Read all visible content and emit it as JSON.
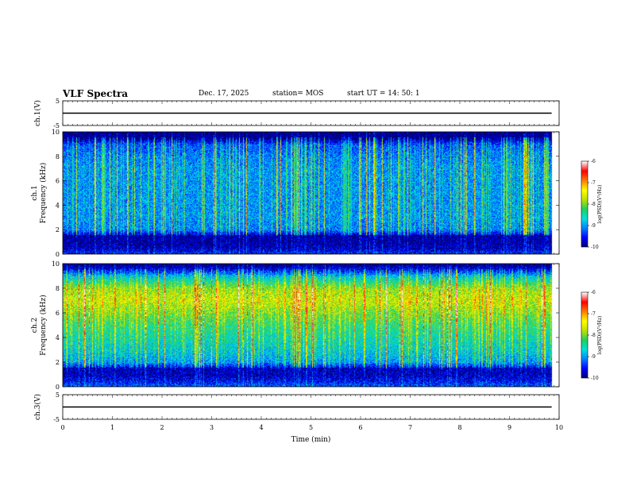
{
  "header": {
    "title": "VLF Spectra",
    "date": "Dec. 17, 2025",
    "station": "station= MOS",
    "start": "start  UT  =    14: 50: 1"
  },
  "colors": {
    "background": "#ffffff",
    "axis": "#000000",
    "colormap": [
      "#000070",
      "#0000ff",
      "#0080ff",
      "#00e0e0",
      "#20d060",
      "#c0e000",
      "#ffff00",
      "#ff8000",
      "#ff0000",
      "#ffffff"
    ]
  },
  "chart_data": [
    {
      "type": "line",
      "name": "ch1-waveform",
      "ylabel": "ch.1(V)",
      "ylim": [
        -5,
        5
      ],
      "yticks": [
        "5",
        "-5"
      ],
      "xlim": [
        0,
        10
      ],
      "series": [
        {
          "name": "ch.1",
          "x": [
            0,
            9.85
          ],
          "values": [
            0,
            0
          ]
        }
      ]
    },
    {
      "type": "heatmap",
      "name": "ch1-spectrogram",
      "ylabel_line1": "ch.1",
      "ylabel_line2": "Frequency (kHz)",
      "ylim": [
        0,
        10
      ],
      "yticks": [
        "0",
        "2",
        "4",
        "6",
        "8",
        "10"
      ],
      "xlim": [
        0,
        10
      ],
      "x_end": 9.85,
      "colorbar": {
        "label": "log(PSD)(V²/Hz)",
        "range": [
          -10,
          -6
        ],
        "ticks": [
          "-6",
          "-7",
          "-8",
          "-9",
          "-10"
        ]
      },
      "mean_log_psd_by_band": {
        "bands_kHz": [
          0,
          0.5,
          1,
          1.5,
          2,
          3,
          4,
          5,
          6,
          7,
          8,
          9,
          9.5,
          10
        ],
        "values": [
          -9.4,
          -9.8,
          -9.9,
          -9.9,
          -9.1,
          -9.0,
          -9.0,
          -9.0,
          -9.0,
          -9.0,
          -9.1,
          -9.3,
          -10,
          -10
        ]
      }
    },
    {
      "type": "heatmap",
      "name": "ch2-spectrogram",
      "ylabel_line1": "ch.2",
      "ylabel_line2": "Frequency (kHz)",
      "ylim": [
        0,
        10
      ],
      "yticks": [
        "0",
        "2",
        "4",
        "6",
        "8",
        "10"
      ],
      "xlim": [
        0,
        10
      ],
      "x_end": 9.85,
      "colorbar": {
        "label": "log(PSD)(V²/Hz)",
        "range": [
          -10,
          -6
        ],
        "ticks": [
          "-6",
          "-7",
          "-8",
          "-9",
          "-10"
        ]
      },
      "mean_log_psd_by_band": {
        "bands_kHz": [
          0,
          0.5,
          1,
          1.5,
          2,
          3,
          4,
          5,
          6,
          7,
          8,
          9,
          9.5,
          10
        ],
        "values": [
          -9.2,
          -9.6,
          -9.8,
          -9.8,
          -9.0,
          -8.7,
          -8.5,
          -8.3,
          -8.0,
          -7.7,
          -7.9,
          -8.8,
          -9.6,
          -10
        ]
      }
    },
    {
      "type": "line",
      "name": "ch3-waveform",
      "ylabel": "ch.3(V)",
      "ylim": [
        -5,
        5
      ],
      "yticks": [
        "5",
        "-5"
      ],
      "xlim": [
        0,
        10
      ],
      "series": [
        {
          "name": "ch.3",
          "x": [
            0,
            9.85
          ],
          "values": [
            0,
            0
          ]
        }
      ]
    }
  ],
  "xaxis": {
    "label": "Time  (min)",
    "ticks": [
      "0",
      "1",
      "2",
      "3",
      "4",
      "5",
      "6",
      "7",
      "8",
      "9",
      "10"
    ]
  }
}
